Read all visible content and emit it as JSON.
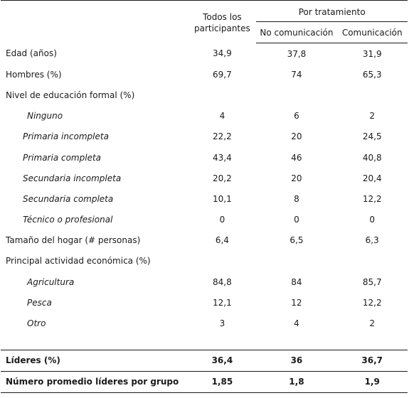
{
  "header": {
    "all_participants": "Todos los participantes",
    "by_treatment": "Por tratamiento",
    "no_communication": "No comunicación",
    "communication": "Comunicación"
  },
  "rows": [
    {
      "label": "Edad (años)",
      "all": "34,9",
      "nocom": "37,8",
      "com": "31,9"
    },
    {
      "label": "Hombres (%)",
      "all": "69,7",
      "nocom": "74",
      "com": "65,3"
    },
    {
      "label": "Nivel de educación formal (%)",
      "all": "",
      "nocom": "",
      "com": ""
    },
    {
      "label": "Ninguno",
      "all": "4",
      "nocom": "6",
      "com": "2"
    },
    {
      "label": "Primaria incompleta",
      "all": "22,2",
      "nocom": "20",
      "com": "24,5"
    },
    {
      "label": "Primaria completa",
      "all": "43,4",
      "nocom": "46",
      "com": "40,8"
    },
    {
      "label": "Secundaria incompleta",
      "all": "20,2",
      "nocom": "20",
      "com": "20,4"
    },
    {
      "label": "Secundaria completa",
      "all": "10,1",
      "nocom": "8",
      "com": "12,2"
    },
    {
      "label": "Técnico o profesional",
      "all": "0",
      "nocom": "0",
      "com": "0"
    },
    {
      "label": "Tamaño del hogar (# personas)",
      "all": "6,4",
      "nocom": "6,5",
      "com": "6,3"
    },
    {
      "label": "Principal actividad económica (%)",
      "all": "",
      "nocom": "",
      "com": ""
    },
    {
      "label": "Agricultura",
      "all": "84,8",
      "nocom": "84",
      "com": "85,7"
    },
    {
      "label": "Pesca",
      "all": "12,1",
      "nocom": "12",
      "com": "12,2"
    },
    {
      "label": "Otro",
      "all": "3",
      "nocom": "4",
      "com": "2"
    }
  ],
  "summary": [
    {
      "label": "Líderes (%)",
      "all": "36,4",
      "nocom": "36",
      "com": "36,7"
    },
    {
      "label": "Número promedio líderes por grupo",
      "all": "1,85",
      "nocom": "1,8",
      "com": "1,9"
    }
  ]
}
